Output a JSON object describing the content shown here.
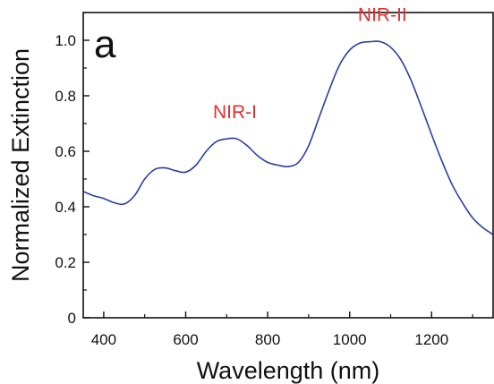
{
  "chart_data": {
    "type": "line",
    "panel_label": "a",
    "xlabel": "Wavelength (nm)",
    "ylabel": "Normalized Extinction",
    "xlim": [
      350,
      1350
    ],
    "ylim": [
      0,
      1.1
    ],
    "x_ticks": [
      400,
      600,
      800,
      1000,
      1200
    ],
    "y_ticks": [
      0,
      0.2,
      0.4,
      0.6,
      0.8,
      1.0
    ],
    "y_tick_labels": [
      "0",
      "0.2",
      "0.4",
      "0.6",
      "0.8",
      "1.0"
    ],
    "grid": false,
    "line_color": "#2a3f9e",
    "annotation_color": "#e0302f",
    "annotations": [
      {
        "text": "NIR-I",
        "x": 720,
        "y": 0.72
      },
      {
        "text": "NIR-II",
        "x": 1080,
        "y": 1.07
      }
    ],
    "series": [
      {
        "x": [
          350,
          375,
          400,
          425,
          450,
          475,
          500,
          525,
          550,
          575,
          600,
          625,
          650,
          675,
          700,
          725,
          750,
          775,
          800,
          825,
          850,
          875,
          900,
          925,
          950,
          975,
          1000,
          1025,
          1050,
          1075,
          1100,
          1125,
          1150,
          1175,
          1200,
          1225,
          1250,
          1275,
          1300,
          1325,
          1350
        ],
        "y": [
          0.455,
          0.44,
          0.43,
          0.415,
          0.41,
          0.44,
          0.5,
          0.535,
          0.54,
          0.53,
          0.525,
          0.55,
          0.6,
          0.635,
          0.645,
          0.645,
          0.62,
          0.585,
          0.56,
          0.55,
          0.545,
          0.56,
          0.62,
          0.72,
          0.82,
          0.91,
          0.965,
          0.99,
          0.995,
          0.995,
          0.975,
          0.93,
          0.855,
          0.76,
          0.66,
          0.565,
          0.48,
          0.415,
          0.36,
          0.325,
          0.3
        ]
      }
    ]
  }
}
